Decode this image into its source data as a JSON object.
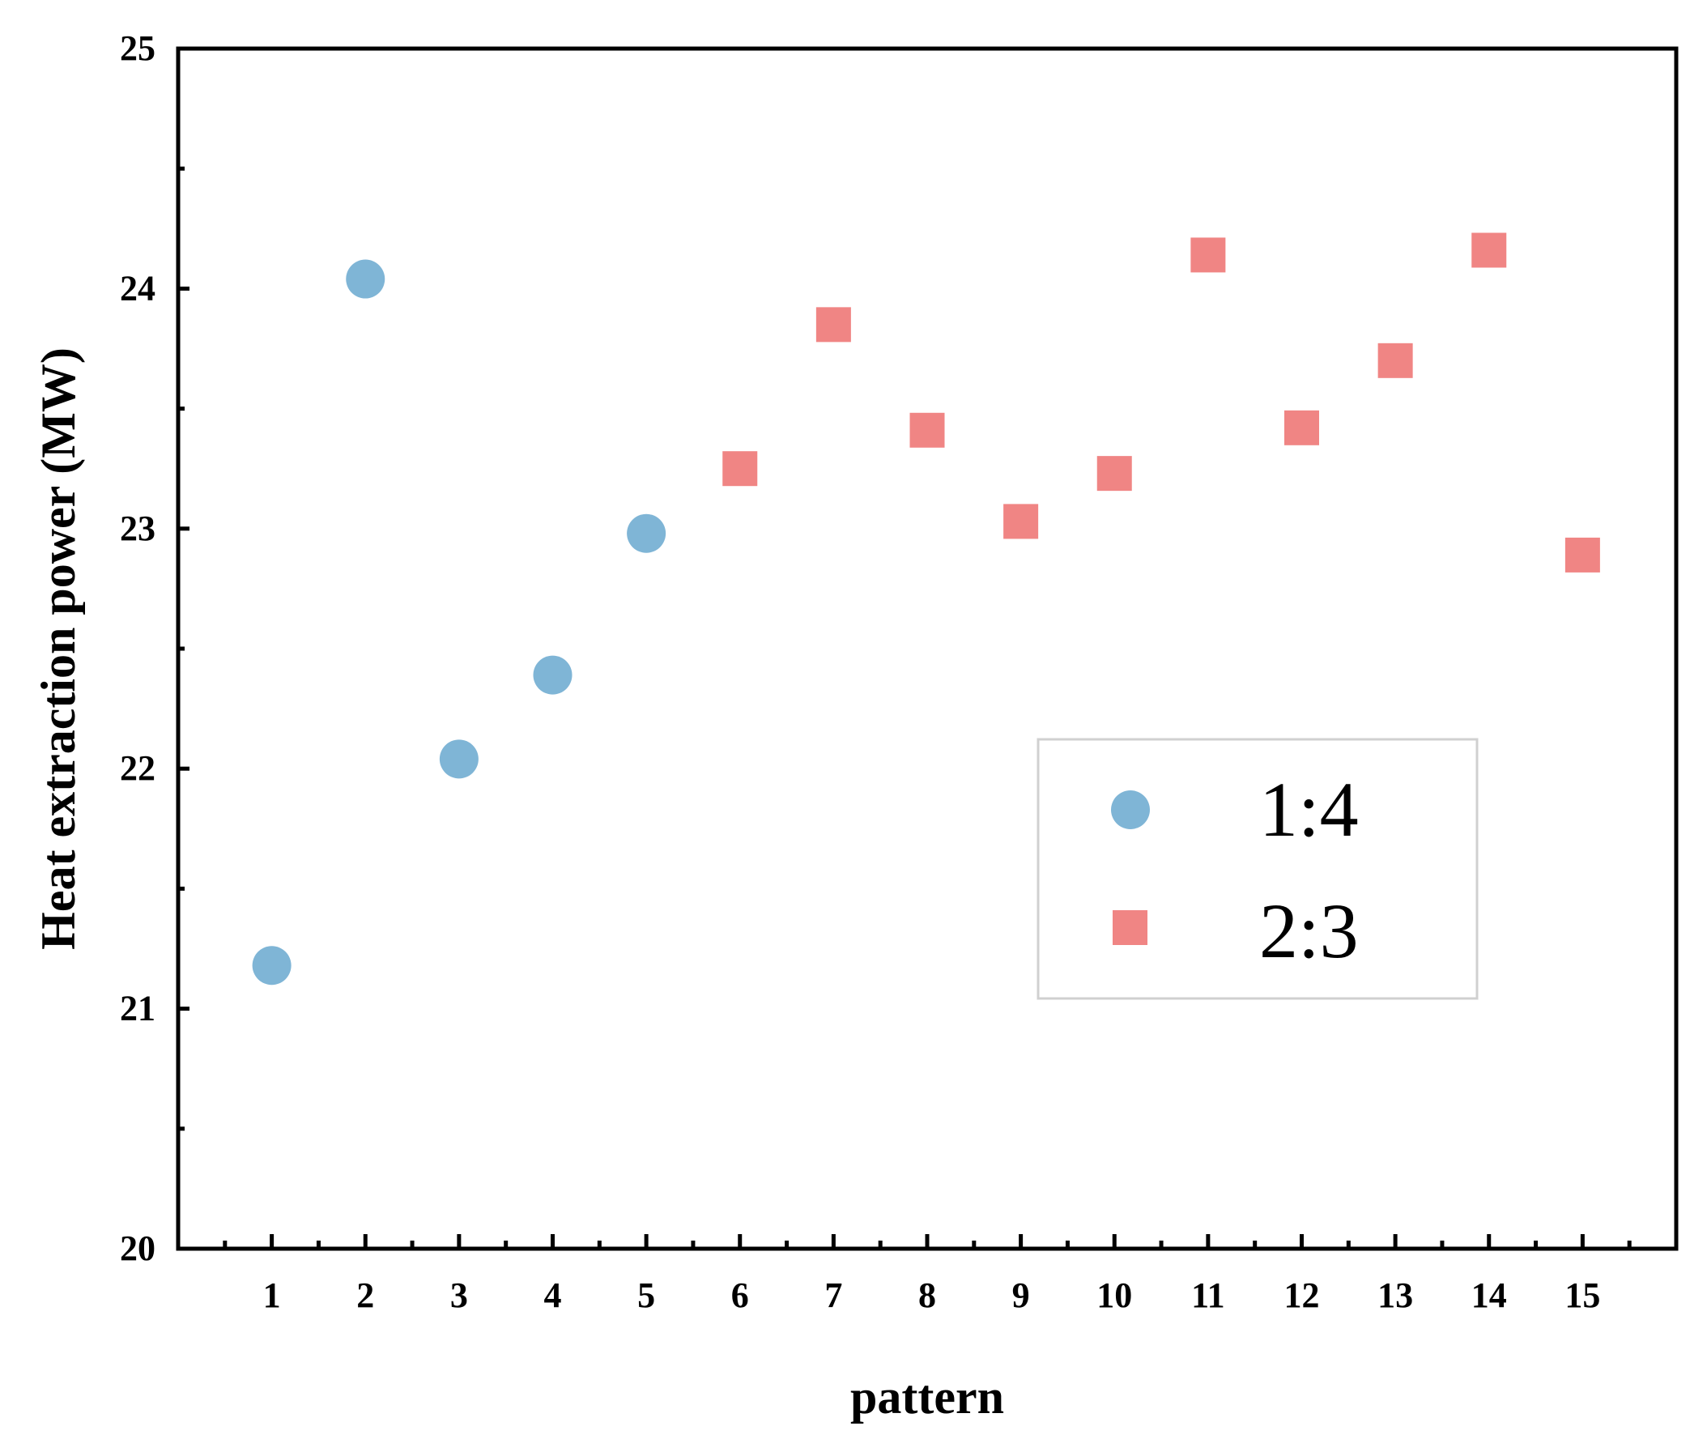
{
  "chart_data": {
    "type": "scatter",
    "title": "",
    "xlabel": "pattern",
    "ylabel": "Heat extraction power (MW)",
    "xlim": [
      0,
      16
    ],
    "ylim": [
      20,
      25
    ],
    "x_ticks": [
      1,
      2,
      3,
      4,
      5,
      6,
      7,
      8,
      9,
      10,
      11,
      12,
      13,
      14,
      15
    ],
    "y_ticks": [
      20,
      21,
      22,
      23,
      24,
      25
    ],
    "grid": false,
    "legend": "center-right",
    "series": [
      {
        "name": "1:4",
        "marker": "circle",
        "color": "#7fb5d6",
        "x": [
          1,
          2,
          3,
          4,
          5
        ],
        "y": [
          21.18,
          24.04,
          22.04,
          22.39,
          22.98
        ]
      },
      {
        "name": "2:3",
        "marker": "square",
        "color": "#f08584",
        "x": [
          6,
          7,
          8,
          9,
          10,
          11,
          12,
          13,
          14,
          15
        ],
        "y": [
          23.25,
          23.85,
          23.41,
          23.03,
          23.23,
          24.14,
          23.42,
          23.7,
          24.16,
          22.89
        ]
      }
    ]
  }
}
